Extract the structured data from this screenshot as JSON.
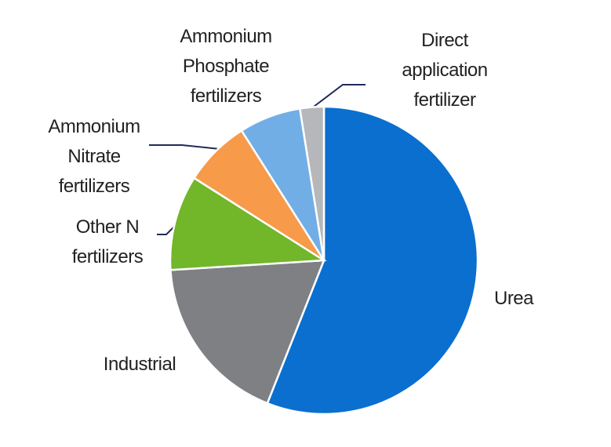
{
  "chart_data": {
    "type": "pie",
    "categories": [
      "Urea",
      "Industrial",
      "Other N fertilizers",
      "Ammonium Nitrate fertilizers",
      "Ammonium Phosphate fertilizers",
      "Direct application fertilizer"
    ],
    "values": [
      56,
      18,
      10,
      7,
      6.5,
      2.5
    ],
    "colors": [
      "#0a6fcf",
      "#7f8084",
      "#72b62a",
      "#f79a4a",
      "#72aee6",
      "#b5b7ba"
    ]
  }
}
